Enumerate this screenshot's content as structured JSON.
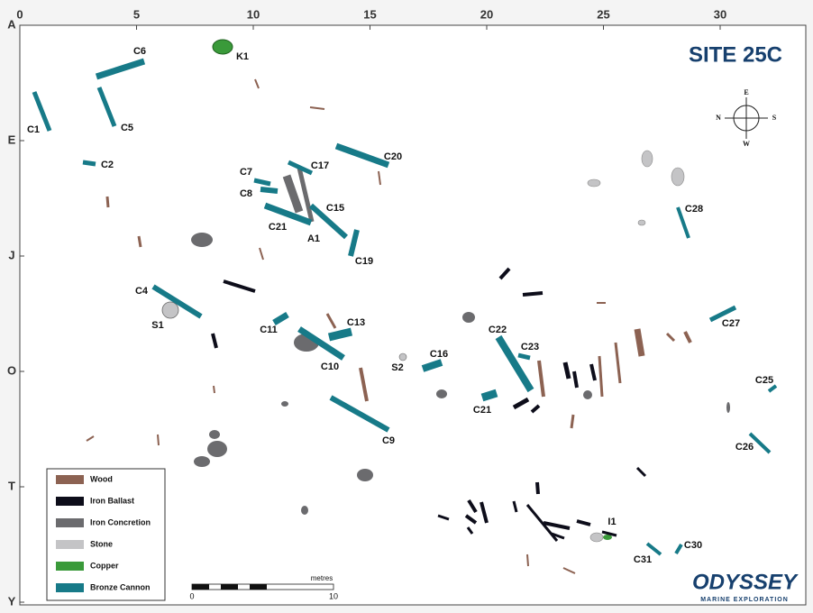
{
  "title": "SITE 25C",
  "grid": {
    "columns": [
      0,
      5,
      10,
      15,
      20,
      25,
      30
    ],
    "rows": [
      "A",
      "E",
      "J",
      "O",
      "T",
      "Y"
    ]
  },
  "compass": {
    "east": "E",
    "north": "N",
    "south": "S",
    "west": "W"
  },
  "labels": [
    "K1",
    "C6",
    "C1",
    "C5",
    "C2",
    "C7",
    "C17",
    "C20",
    "C8",
    "C15",
    "C21",
    "A1",
    "C19",
    "C28",
    "C4",
    "S1",
    "C11",
    "C13",
    "C10",
    "S2",
    "C16",
    "C22",
    "C23",
    "C21",
    "C27",
    "C25",
    "C26",
    "C9",
    "I1",
    "C30",
    "C31"
  ],
  "legend": [
    {
      "label": "Wood",
      "color": "#8c6252"
    },
    {
      "label": "Iron Ballast",
      "color": "#0d0d1a"
    },
    {
      "label": "Iron Concretion",
      "color": "#6b6b6e"
    },
    {
      "label": "Stone",
      "color": "#c4c4c6"
    },
    {
      "label": "Copper",
      "color": "#3a9a3a"
    },
    {
      "label": "Bronze Cannon",
      "color": "#177a88"
    }
  ],
  "scale": {
    "unit": "metres",
    "start": 0,
    "end": 10
  },
  "logo": {
    "name": "ODYSSEY",
    "tagline": "MARINE EXPLORATION"
  }
}
